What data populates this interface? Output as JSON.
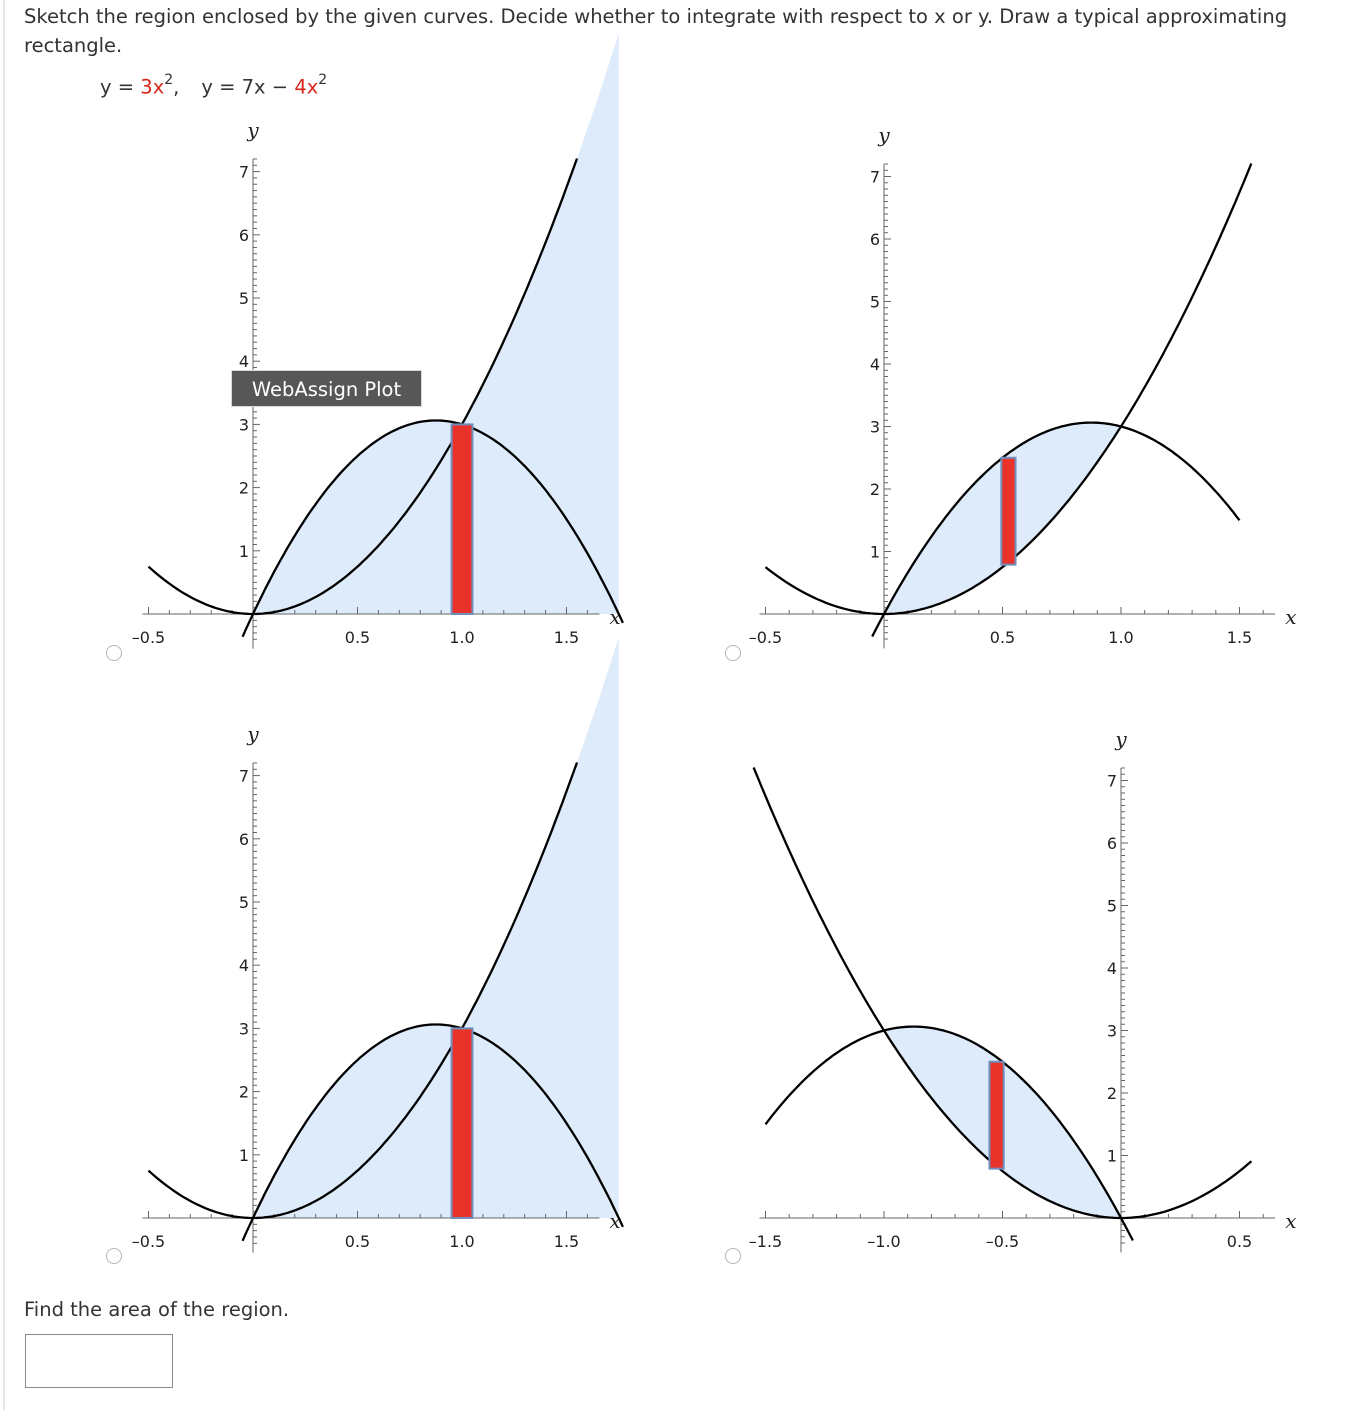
{
  "question": {
    "prompt": "Sketch the region enclosed by the given curves. Decide whether to integrate with respect to x or y. Draw a typical approximating rectangle.",
    "eq1_lhs": "y = ",
    "eq1_rhs": "3x",
    "eq1_exp": "2",
    "eq1_sep": ",",
    "eq2_lhs": "y = 7x − ",
    "eq2_rhs": "4x",
    "eq2_exp": "2",
    "find_label": "Find the area of the region."
  },
  "tooltip": {
    "label": "WebAssign Plot"
  },
  "answer": {
    "value": ""
  },
  "colors": {
    "fill": "#deebfb",
    "rect": "#e8322a",
    "rect_border": "#6f8fbd",
    "curve": "#000000"
  },
  "chart_data": [
    {
      "type": "line",
      "option": 1,
      "xlabel": "x",
      "ylabel": "y",
      "xlim": [
        -0.5,
        1.6
      ],
      "ylim": [
        -0.5,
        7.2
      ],
      "x_ticks": [
        -0.5,
        0.5,
        1.0,
        1.5
      ],
      "x_tick_labels": [
        "–0.5",
        "0.5",
        "1.0",
        "1.5"
      ],
      "y_ticks": [
        1,
        2,
        3,
        4,
        5,
        6,
        7
      ],
      "y_tick_labels": [
        "1",
        "2",
        "3",
        "4",
        "5",
        "6",
        "7"
      ],
      "curves": [
        {
          "a": 3,
          "b": 0,
          "range": [
            -0.5,
            1.55
          ]
        },
        {
          "a": -4,
          "b": 7,
          "range": [
            -0.05,
            1.77
          ]
        }
      ],
      "fill_regions": [
        {
          "from": 0,
          "to": 1.75,
          "lower": "zero",
          "upper": "max"
        }
      ],
      "rectangle": {
        "x0": 0.95,
        "x1": 1.05,
        "y0": 0,
        "y1": 3
      }
    },
    {
      "type": "line",
      "option": 2,
      "xlabel": "x",
      "ylabel": "y",
      "xlim": [
        -0.5,
        1.6
      ],
      "ylim": [
        -0.5,
        7.2
      ],
      "x_ticks": [
        -0.5,
        0.5,
        1.0,
        1.5
      ],
      "x_tick_labels": [
        "–0.5",
        "0.5",
        "1.0",
        "1.5"
      ],
      "y_ticks": [
        1,
        2,
        3,
        4,
        5,
        6,
        7
      ],
      "y_tick_labels": [
        "1",
        "2",
        "3",
        "4",
        "5",
        "6",
        "7"
      ],
      "curves": [
        {
          "a": 3,
          "b": 0,
          "range": [
            -0.5,
            1.55
          ]
        },
        {
          "a": -4,
          "b": 7,
          "range": [
            -0.05,
            1.5
          ]
        }
      ],
      "fill_regions": [
        {
          "from": 0,
          "to": 1,
          "lower": "min",
          "upper": "max"
        }
      ],
      "rectangle": {
        "x0": 0.495,
        "x1": 0.555,
        "y0": 0.79,
        "y1": 2.5
      }
    },
    {
      "type": "line",
      "option": 3,
      "xlabel": "x",
      "ylabel": "y",
      "xlim": [
        -0.5,
        1.6
      ],
      "ylim": [
        -0.5,
        7.2
      ],
      "x_ticks": [
        -0.5,
        0.5,
        1.0,
        1.5
      ],
      "x_tick_labels": [
        "–0.5",
        "0.5",
        "1.0",
        "1.5"
      ],
      "y_ticks": [
        1,
        2,
        3,
        4,
        5,
        6,
        7
      ],
      "y_tick_labels": [
        "1",
        "2",
        "3",
        "4",
        "5",
        "6",
        "7"
      ],
      "curves": [
        {
          "a": 3,
          "b": 0,
          "range": [
            -0.5,
            1.55
          ]
        },
        {
          "a": -4,
          "b": 7,
          "range": [
            -0.05,
            1.77
          ]
        }
      ],
      "fill_regions": [
        {
          "from": 0,
          "to": 1.75,
          "lower": "zero",
          "upper": "max"
        }
      ],
      "rectangle": {
        "x0": 0.95,
        "x1": 1.05,
        "y0": 0,
        "y1": 3
      }
    },
    {
      "type": "line",
      "option": 4,
      "xlabel": "x",
      "ylabel": "y",
      "xlim": [
        -1.5,
        0.6
      ],
      "ylim": [
        -0.5,
        7.2
      ],
      "x_ticks": [
        -1.5,
        -1.0,
        -0.5,
        0.5
      ],
      "x_tick_labels": [
        "–1.5",
        "–1.0",
        "–0.5",
        "0.5"
      ],
      "y_ticks": [
        1,
        2,
        3,
        4,
        5,
        6,
        7
      ],
      "y_tick_labels": [
        "1",
        "2",
        "3",
        "4",
        "5",
        "6",
        "7"
      ],
      "curves": [
        {
          "a": 3,
          "b": 0,
          "range": [
            -1.55,
            0.55
          ]
        },
        {
          "a": -4,
          "b": -7,
          "range": [
            -1.5,
            0.05
          ]
        }
      ],
      "fill_regions": [
        {
          "from": -1,
          "to": 0,
          "lower": "min",
          "upper": "max"
        }
      ],
      "rectangle": {
        "x0": -0.555,
        "x1": -0.495,
        "y0": 0.79,
        "y1": 2.5
      }
    }
  ]
}
